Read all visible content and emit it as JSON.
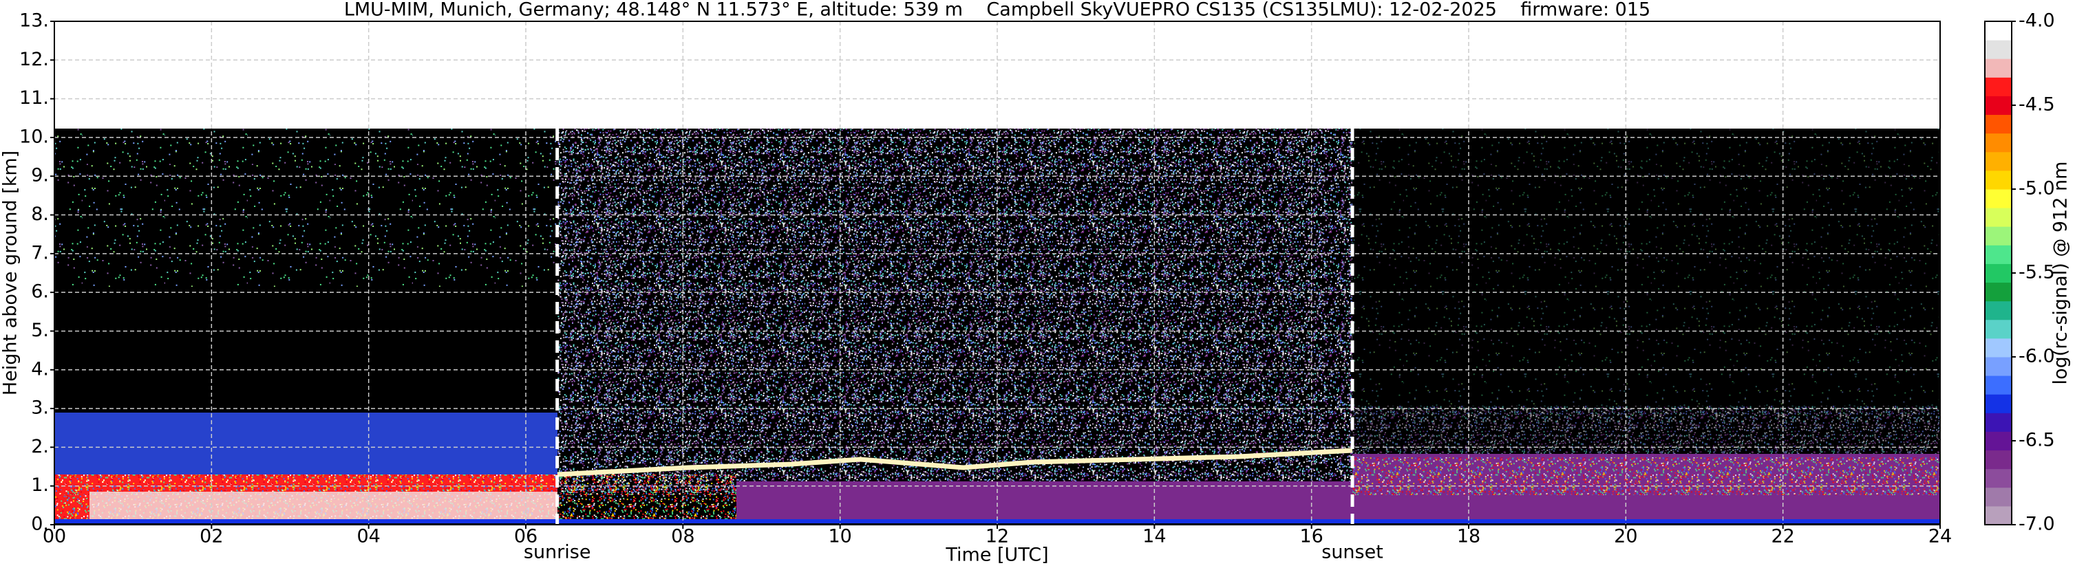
{
  "chart_data": {
    "type": "heatmap",
    "title": "LMU-MIM, Munich, Germany; 48.148° N 11.573° E, altitude: 539 m    Campbell SkyVUEPRO CS135 (CS135LMU): 12-02-2025    firmware: 015",
    "x_label": "Time [UTC]",
    "y_label": "Height above ground [km]",
    "xlim": [
      0,
      24
    ],
    "xticks": [
      {
        "value": 0,
        "label": "00"
      },
      {
        "value": 2,
        "label": "02"
      },
      {
        "value": 4,
        "label": "04"
      },
      {
        "value": 6,
        "label": "06"
      },
      {
        "value": 8,
        "label": "08"
      },
      {
        "value": 10,
        "label": "10"
      },
      {
        "value": 12,
        "label": "12"
      },
      {
        "value": 14,
        "label": "14"
      },
      {
        "value": 16,
        "label": "16"
      },
      {
        "value": 18,
        "label": "18"
      },
      {
        "value": 20,
        "label": "20"
      },
      {
        "value": 22,
        "label": "22"
      },
      {
        "value": 24,
        "label": "24"
      }
    ],
    "ylim": [
      0,
      13
    ],
    "yticks": [
      {
        "value": 0,
        "label": "0."
      },
      {
        "value": 1,
        "label": "1."
      },
      {
        "value": 2,
        "label": "2."
      },
      {
        "value": 3,
        "label": "3."
      },
      {
        "value": 4,
        "label": "4."
      },
      {
        "value": 5,
        "label": "5."
      },
      {
        "value": 6,
        "label": "6."
      },
      {
        "value": 7,
        "label": "7."
      },
      {
        "value": 8,
        "label": "8."
      },
      {
        "value": 9,
        "label": "9."
      },
      {
        "value": 10,
        "label": "10."
      },
      {
        "value": 11,
        "label": "11."
      },
      {
        "value": 12,
        "label": "12."
      },
      {
        "value": 13,
        "label": "13."
      }
    ],
    "grid": true,
    "annotations": [
      {
        "text": "sunrise",
        "x": 6.4
      },
      {
        "text": "sunset",
        "x": 16.52
      }
    ],
    "colorbar": {
      "label": "log(rc-signal) @ 912 nm",
      "lim": [
        -7,
        -4
      ],
      "ticks": [
        {
          "value": -4,
          "label": "-4.0"
        },
        {
          "value": -4.5,
          "label": "-4.5"
        },
        {
          "value": -5,
          "label": "-5.0"
        },
        {
          "value": -5.5,
          "label": "-5.5"
        },
        {
          "value": -6,
          "label": "-6.0"
        },
        {
          "value": -6.5,
          "label": "-6.5"
        },
        {
          "value": -7,
          "label": "-7.0"
        }
      ],
      "colors": [
        "#b8a0bc",
        "#a07aaa",
        "#8c4c9c",
        "#7a2a8c",
        "#641496",
        "#3c14b4",
        "#1432e6",
        "#3c6eff",
        "#78a0ff",
        "#a0c8ff",
        "#5ad2c8",
        "#1fb48c",
        "#14a03c",
        "#22c864",
        "#4ee68c",
        "#9cf57a",
        "#d8ff5a",
        "#ffff33",
        "#ffd700",
        "#ffb000",
        "#ff8c00",
        "#ff5500",
        "#e8001a",
        "#ff1a1a",
        "#f2b8b8",
        "#e2e2e2",
        "#ffffff"
      ]
    }
  }
}
